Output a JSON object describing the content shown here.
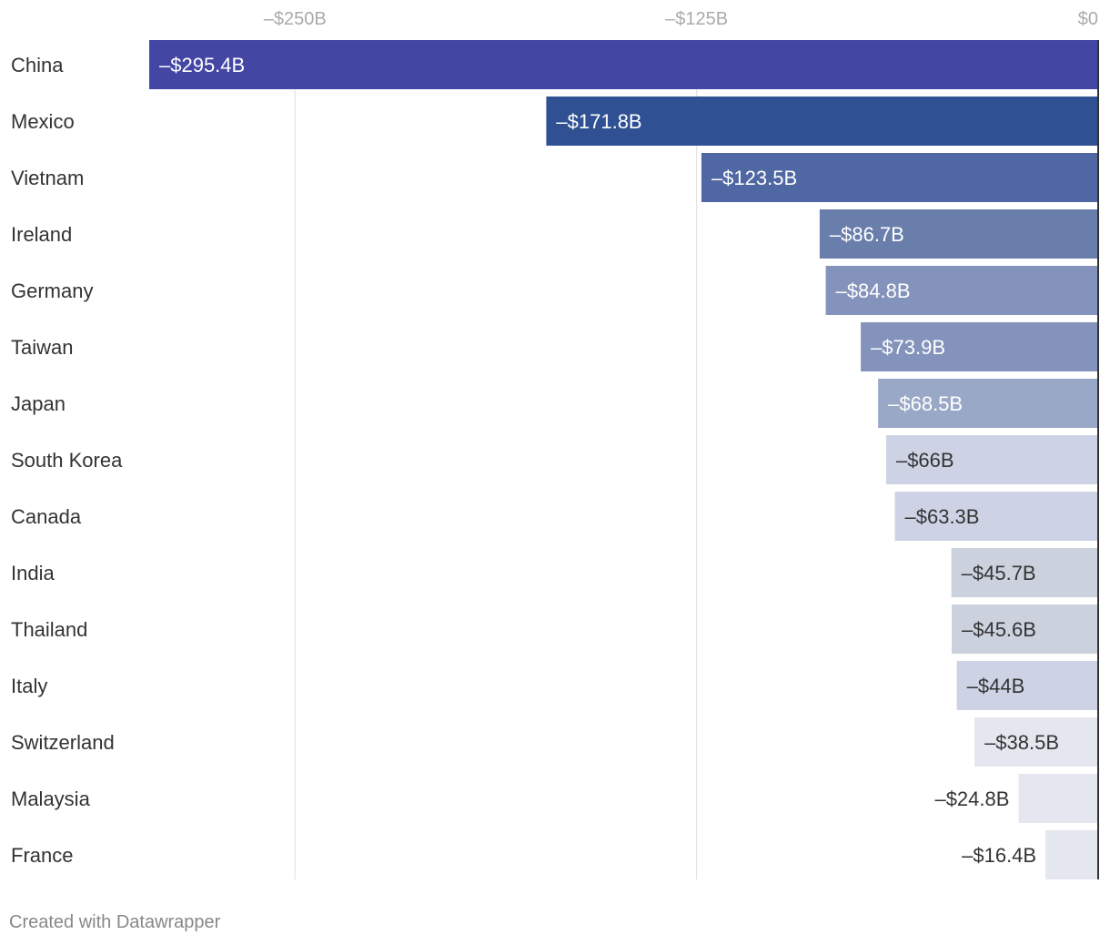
{
  "chart_data": {
    "type": "bar",
    "orientation": "horizontal",
    "categories": [
      "China",
      "Mexico",
      "Vietnam",
      "Ireland",
      "Germany",
      "Taiwan",
      "Japan",
      "South Korea",
      "Canada",
      "India",
      "Thailand",
      "Italy",
      "Switzerland",
      "Malaysia",
      "France"
    ],
    "values": [
      -295.4,
      -171.8,
      -123.5,
      -86.7,
      -84.8,
      -73.9,
      -68.5,
      -66,
      -63.3,
      -45.7,
      -45.6,
      -44,
      -38.5,
      -24.8,
      -16.4
    ],
    "value_labels": [
      "–$295.4B",
      "–$171.8B",
      "–$123.5B",
      "–$86.7B",
      "–$84.8B",
      "–$73.9B",
      "–$68.5B",
      "–$66B",
      "–$63.3B",
      "–$45.7B",
      "–$45.6B",
      "–$44B",
      "–$38.5B",
      "–$24.8B",
      "–$16.4B"
    ],
    "bar_colors": [
      "#4347a3",
      "#2f5194",
      "#4f67a2",
      "#6a7eac",
      "#8393bb",
      "#8393bb",
      "#9aa8c7",
      "#cdd3e5",
      "#cdd3e5",
      "#ccd1de",
      "#ccd1de",
      "#cdd3e5",
      "#e4e7ef",
      "#e4e7ef",
      "#e4e7ef"
    ],
    "label_colors": [
      "#ffffff",
      "#ffffff",
      "#ffffff",
      "#ffffff",
      "#ffffff",
      "#ffffff",
      "#ffffff",
      "#333333",
      "#333333",
      "#333333",
      "#333333",
      "#333333",
      "#333333",
      "#333333",
      "#333333"
    ],
    "label_outside": [
      false,
      false,
      false,
      false,
      false,
      false,
      false,
      false,
      false,
      false,
      false,
      false,
      false,
      true,
      true
    ],
    "x_ticks": [
      -250,
      -125,
      0
    ],
    "x_tick_labels": [
      "–$250B",
      "–$125B",
      "$0"
    ],
    "xlim": [
      -295.4,
      0
    ],
    "grid": true,
    "title": "",
    "xlabel": "",
    "ylabel": ""
  },
  "footer": {
    "credit": "Created with Datawrapper"
  }
}
